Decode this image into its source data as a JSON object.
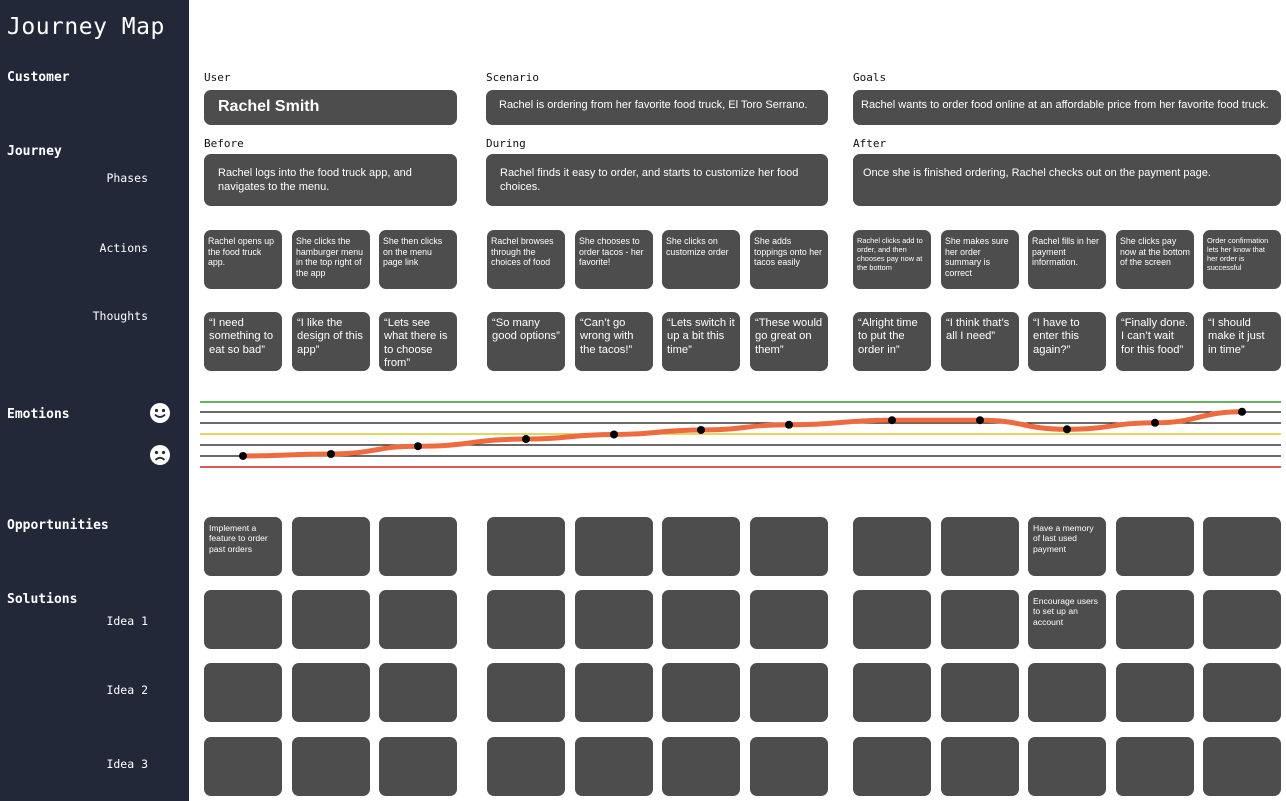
{
  "sidebar": {
    "title": "Journey Map",
    "sections": {
      "customer": "Customer",
      "journey": "Journey",
      "phases": "Phases",
      "actions": "Actions",
      "thoughts": "Thoughts",
      "emotions": "Emotions",
      "opportunities": "Opportunities",
      "solutions": "Solutions",
      "idea1": "Idea 1",
      "idea2": "Idea 2",
      "idea3": "Idea 3"
    }
  },
  "customer": {
    "user_label": "User",
    "user_name": "Rachel Smith",
    "scenario_label": "Scenario",
    "scenario_text": "Rachel is ordering from her favorite food truck, El Toro Serrano.",
    "goals_label": "Goals",
    "goals_text": "Rachel wants to order food online at an affordable price from her favorite food truck."
  },
  "phases": [
    {
      "label": "Before",
      "text": "Rachel logs into the food truck app, and navigates to the menu."
    },
    {
      "label": "During",
      "text": "Rachel finds it easy to order, and starts to customize her food choices."
    },
    {
      "label": "After",
      "text": "Once she is finished ordering, Rachel checks out on the payment page."
    }
  ],
  "actions": [
    "Rachel opens up the food truck app.",
    "She clicks the hamburger menu in the top right of the app",
    "She then clicks on the menu page link",
    "Rachel browses through the choices of food",
    "She chooses to order tacos - her favorite!",
    "She clicks on customize order",
    "She adds toppings onto her tacos easily",
    "Rachel clicks add to order, and then chooses pay now at the bottom",
    "She makes sure her order summary is correct",
    "Rachel fills in her payment information.",
    "She clicks pay now at the bottom of the screen",
    "Order confirmation lets her know that her order is successful"
  ],
  "thoughts": [
    "“I need something to eat so bad”",
    "“I like the design of this app”",
    "“Lets see what there is to choose from”",
    "“So many good options”",
    "“Can’t go wrong with the tacos!”",
    "“Lets switch it up a bit this time”",
    "“These would go great on them”",
    "“Alright time to put the order in”",
    "“I think that’s all I need”",
    "“I have to enter this again?”",
    "“Finally done. I can’t wait for this food”",
    "“I should make it just in time”"
  ],
  "emotions": {
    "happy_icon": "smiley-face-icon",
    "sad_icon": "sad-face-icon",
    "values": [
      0.17,
      0.2,
      0.32,
      0.43,
      0.5,
      0.57,
      0.65,
      0.72,
      0.72,
      0.58,
      0.68,
      0.85
    ]
  },
  "opportunities": [
    "Implement a feature to order past orders",
    "",
    "",
    "",
    "",
    "",
    "",
    "",
    "",
    "Have a memory of last used payment",
    "",
    ""
  ],
  "solutions": {
    "idea1": [
      "",
      "",
      "",
      "",
      "",
      "",
      "",
      "",
      "",
      "Encourage users to set up an account",
      "",
      ""
    ],
    "idea2": [
      "",
      "",
      "",
      "",
      "",
      "",
      "",
      "",
      "",
      "",
      "",
      ""
    ],
    "idea3": [
      "",
      "",
      "",
      "",
      "",
      "",
      "",
      "",
      "",
      "",
      "",
      ""
    ]
  },
  "colors": {
    "sidebar": "#232838",
    "box": "#4d4d4d",
    "emotion_line": "#ee6a3f",
    "good_line": "#2e9b2e",
    "neutral_line": "#d9c92a",
    "bad_line": "#cc2222"
  }
}
